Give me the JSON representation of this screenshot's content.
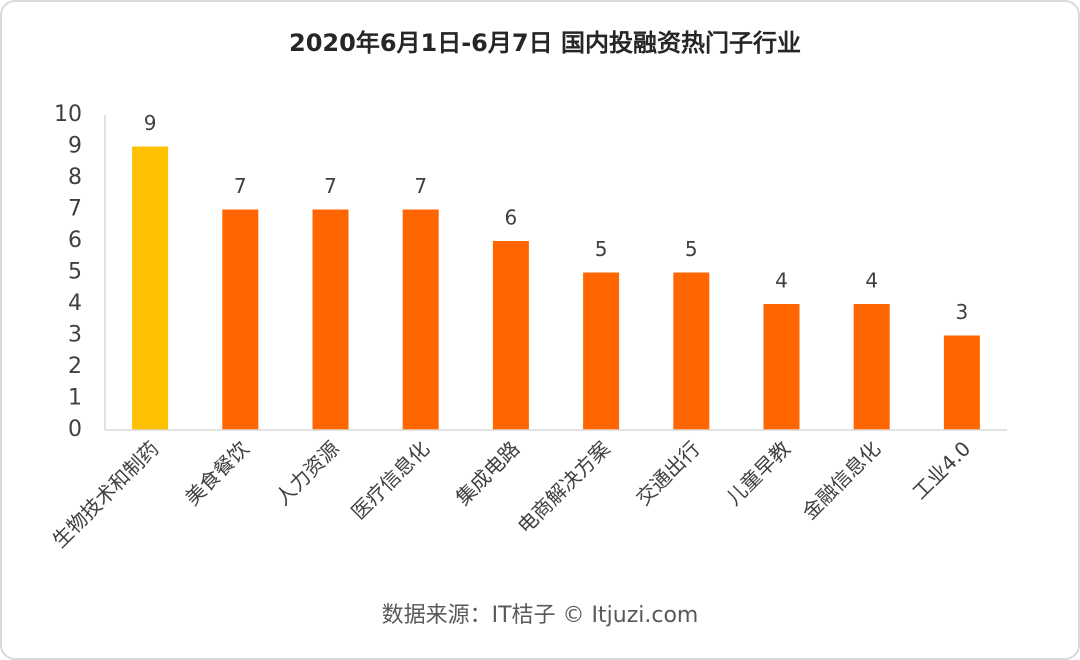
{
  "chart_data": {
    "type": "bar",
    "title": "2020年6月1日-6月7日 国内投融资热门子行业",
    "categories": [
      "生物技术和制药",
      "美食餐饮",
      "人力资源",
      "医疗信息化",
      "集成电路",
      "电商解决方案",
      "交通出行",
      "儿童早教",
      "金融信息化",
      "工业4.0"
    ],
    "values": [
      9,
      7,
      7,
      7,
      6,
      5,
      5,
      4,
      4,
      3
    ],
    "colors": [
      "#ffc000",
      "#ff6600",
      "#ff6600",
      "#ff6600",
      "#ff6600",
      "#ff6600",
      "#ff6600",
      "#ff6600",
      "#ff6600",
      "#ff6600"
    ],
    "ylim": [
      0,
      10
    ],
    "yticks": [
      0,
      1,
      2,
      3,
      4,
      5,
      6,
      7,
      8,
      9,
      10
    ],
    "grid": false,
    "source": "数据来源：IT桔子 © Itjuzi.com"
  }
}
